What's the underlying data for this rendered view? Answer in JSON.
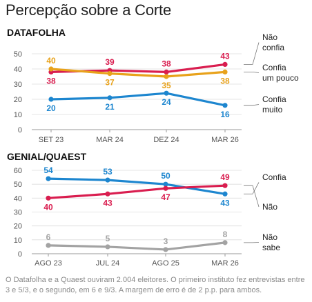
{
  "title": "Percepção sobre a Corte",
  "footnote": "O Datafolha e a Quaest ouviram 2.004 eleitores. O primeiro instituto fez entrevistas entre 3 e 5/3, e o segundo, em 6 e 9/3. A margem de erro é de 2 p.p. para ambos.",
  "colors": {
    "red": "#d91d4f",
    "orange": "#e8a21b",
    "blue": "#1d86cf",
    "gray": "#a3a3a3"
  },
  "chart_data": [
    {
      "type": "line",
      "title": "DATAFOLHA",
      "categories": [
        "SET 23",
        "MAR 24",
        "DEZ 24",
        "MAR 26"
      ],
      "ylim": [
        0,
        50
      ],
      "yticks": [
        0,
        10,
        20,
        30,
        40,
        50
      ],
      "grid": true,
      "legend": "right",
      "series": [
        {
          "name": "Não confia",
          "legend_lines": [
            "Não",
            "confia"
          ],
          "color": "#d91d4f",
          "values": [
            38,
            39,
            38,
            43
          ]
        },
        {
          "name": "Confia um pouco",
          "legend_lines": [
            "Confia",
            "um pouco"
          ],
          "color": "#e8a21b",
          "values": [
            40,
            37,
            35,
            38
          ]
        },
        {
          "name": "Confia muito",
          "legend_lines": [
            "Confia",
            "muito"
          ],
          "color": "#1d86cf",
          "values": [
            20,
            21,
            24,
            16
          ]
        }
      ]
    },
    {
      "type": "line",
      "title": "GENIAL/QUAEST",
      "categories": [
        "AGO 23",
        "JUL 24",
        "AGO 25",
        "MAR 26"
      ],
      "ylim": [
        0,
        60
      ],
      "yticks": [
        0,
        10,
        20,
        30,
        40,
        50,
        60
      ],
      "grid": true,
      "legend": "right",
      "series": [
        {
          "name": "Confia",
          "legend_lines": [
            "Confia"
          ],
          "color": "#1d86cf",
          "values": [
            54,
            53,
            50,
            43
          ]
        },
        {
          "name": "Não confia",
          "legend_lines": [
            "Não",
            "confia"
          ],
          "color": "#d91d4f",
          "values": [
            40,
            43,
            47,
            49
          ]
        },
        {
          "name": "Não sabe",
          "legend_lines": [
            "Não",
            "sabe"
          ],
          "color": "#a3a3a3",
          "values": [
            6,
            5,
            3,
            8
          ]
        }
      ]
    }
  ]
}
